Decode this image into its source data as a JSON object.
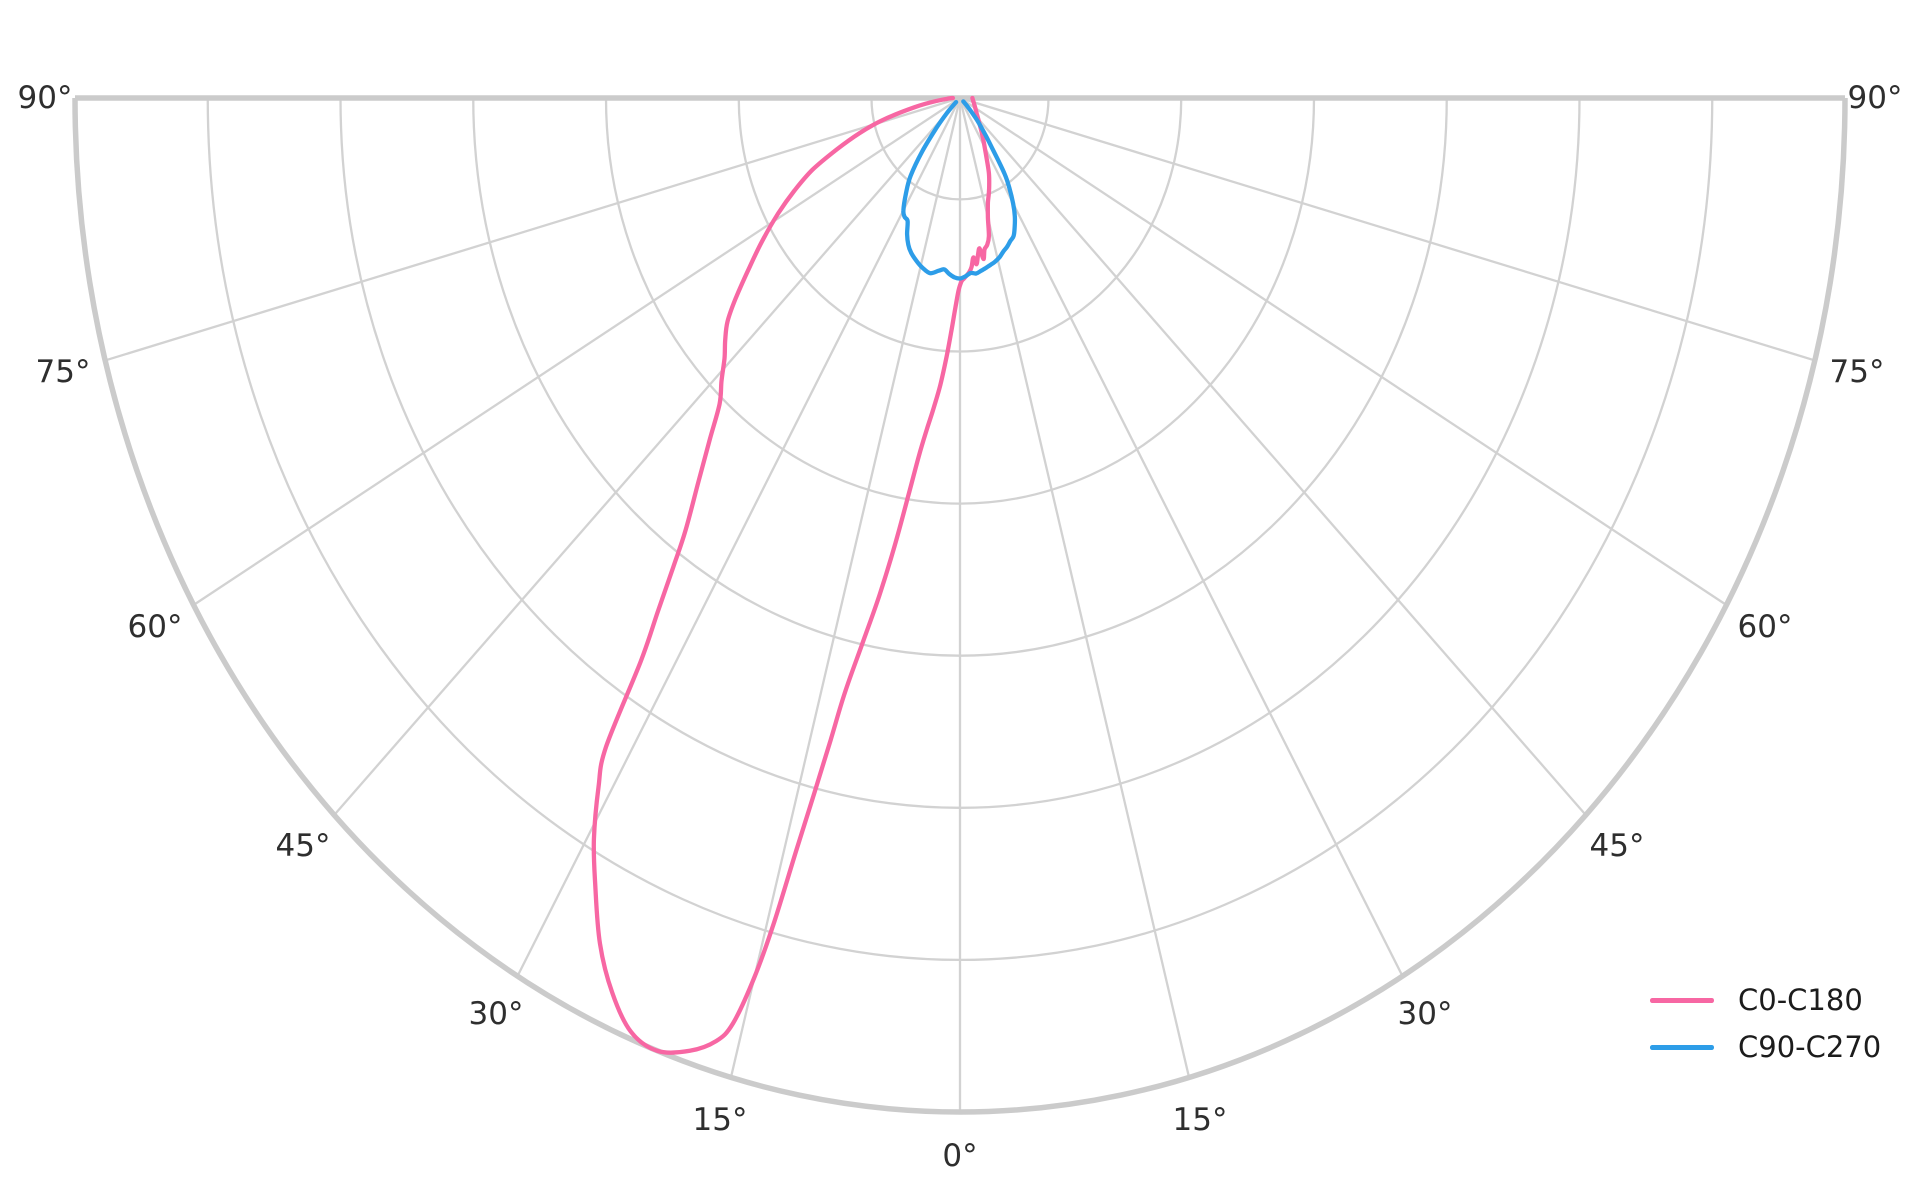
{
  "chart_data": {
    "type": "polar",
    "subtype": "photometric_intensity_distribution",
    "background": "#ffffff",
    "grid": {
      "grid_on": true,
      "thin_grid_color": "#d2d2d2",
      "outline_color": "#cbcbcb",
      "angle_step_deg": 15,
      "angle_range_deg": [
        -90,
        90
      ],
      "radial_ring_fractions": [
        0.1,
        0.25,
        0.4,
        0.55,
        0.7,
        0.85,
        1.0
      ],
      "radial_value_labels_visible": false
    },
    "text_color": "#2e2e2e",
    "angle_ticks": [
      {
        "angle": -90,
        "label": "90°"
      },
      {
        "angle": -75,
        "label": "75°"
      },
      {
        "angle": -60,
        "label": "60°"
      },
      {
        "angle": -45,
        "label": "45°"
      },
      {
        "angle": -30,
        "label": "30°"
      },
      {
        "angle": -15,
        "label": "15°"
      },
      {
        "angle": 0,
        "label": "0°"
      },
      {
        "angle": 15,
        "label": "15°"
      },
      {
        "angle": 30,
        "label": "30°"
      },
      {
        "angle": 45,
        "label": "45°"
      },
      {
        "angle": 60,
        "label": "60°"
      },
      {
        "angle": 75,
        "label": "75°"
      },
      {
        "angle": 90,
        "label": "90°"
      }
    ],
    "series": [
      {
        "name": "C0-C180",
        "color": "#f767a3",
        "points_theta_r": [
          [
            90,
            0.014
          ],
          [
            80,
            0.015
          ],
          [
            70,
            0.017
          ],
          [
            60,
            0.02
          ],
          [
            50,
            0.025
          ],
          [
            40,
            0.035
          ],
          [
            33,
            0.048
          ],
          [
            28,
            0.062
          ],
          [
            24,
            0.08
          ],
          [
            21,
            0.092
          ],
          [
            19,
            0.1
          ],
          [
            17,
            0.108
          ],
          [
            15,
            0.122
          ],
          [
            13.5,
            0.14
          ],
          [
            12,
            0.148
          ],
          [
            10.5,
            0.152
          ],
          [
            9.5,
            0.161
          ],
          [
            8.5,
            0.15
          ],
          [
            7.5,
            0.156
          ],
          [
            6.5,
            0.165
          ],
          [
            5.5,
            0.158
          ],
          [
            4.5,
            0.167
          ],
          [
            3.5,
            0.172
          ],
          [
            2.5,
            0.175
          ],
          [
            1.5,
            0.178
          ],
          [
            0.5,
            0.181
          ],
          [
            -0.5,
            0.19
          ],
          [
            -1.5,
            0.208
          ],
          [
            -2.5,
            0.232
          ],
          [
            -3.5,
            0.258
          ],
          [
            -4.5,
            0.284
          ],
          [
            -5.5,
            0.306
          ],
          [
            -6.5,
            0.328
          ],
          [
            -7.5,
            0.356
          ],
          [
            -8.5,
            0.398
          ],
          [
            -9.5,
            0.448
          ],
          [
            -10.5,
            0.498
          ],
          [
            -11.5,
            0.545
          ],
          [
            -12.5,
            0.6
          ],
          [
            -13,
            0.65
          ],
          [
            -13.5,
            0.705
          ],
          [
            -14,
            0.765
          ],
          [
            -14.5,
            0.842
          ],
          [
            -15,
            0.898
          ],
          [
            -15.7,
            0.948
          ],
          [
            -16.5,
            0.97
          ],
          [
            -18,
            0.988
          ],
          [
            -20,
            1.0
          ],
          [
            -22,
            0.993
          ],
          [
            -24,
            0.966
          ],
          [
            -26,
            0.928
          ],
          [
            -28,
            0.878
          ],
          [
            -29.5,
            0.84
          ],
          [
            -31,
            0.793
          ],
          [
            -32,
            0.755
          ],
          [
            -33,
            0.662
          ],
          [
            -34,
            0.61
          ],
          [
            -35,
            0.565
          ],
          [
            -36,
            0.528
          ],
          [
            -38,
            0.48
          ],
          [
            -40,
            0.44
          ],
          [
            -42,
            0.406
          ],
          [
            -44,
            0.388
          ],
          [
            -46,
            0.37
          ],
          [
            -48,
            0.357
          ],
          [
            -50,
            0.343
          ],
          [
            -52,
            0.322
          ],
          [
            -55,
            0.29
          ],
          [
            -58,
            0.262
          ],
          [
            -61,
            0.235
          ],
          [
            -64,
            0.208
          ],
          [
            -67,
            0.181
          ],
          [
            -70,
            0.148
          ],
          [
            -73,
            0.119
          ],
          [
            -76,
            0.09
          ],
          [
            -80,
            0.052
          ],
          [
            -84,
            0.026
          ],
          [
            -88,
            0.012
          ],
          [
            -90,
            0.008
          ]
        ]
      },
      {
        "name": "C90-C270",
        "color": "#2d9de8",
        "points_theta_r": [
          [
            -48,
            0.006
          ],
          [
            -45,
            0.02
          ],
          [
            -42,
            0.04
          ],
          [
            -39,
            0.068
          ],
          [
            -36,
            0.095
          ],
          [
            -33,
            0.112
          ],
          [
            -30,
            0.128
          ],
          [
            -28,
            0.133
          ],
          [
            -26,
            0.135
          ],
          [
            -24,
            0.147
          ],
          [
            -22,
            0.156
          ],
          [
            -20,
            0.162
          ],
          [
            -17,
            0.168
          ],
          [
            -14,
            0.173
          ],
          [
            -11,
            0.176
          ],
          [
            -8,
            0.172
          ],
          [
            -6,
            0.17
          ],
          [
            -4,
            0.174
          ],
          [
            -2,
            0.177
          ],
          [
            0,
            0.178
          ],
          [
            2,
            0.176
          ],
          [
            4,
            0.173
          ],
          [
            6,
            0.174
          ],
          [
            8,
            0.172
          ],
          [
            10,
            0.17
          ],
          [
            12,
            0.168
          ],
          [
            14,
            0.166
          ],
          [
            16,
            0.163
          ],
          [
            18,
            0.159
          ],
          [
            20,
            0.156
          ],
          [
            22,
            0.152
          ],
          [
            24,
            0.149
          ],
          [
            26,
            0.141
          ],
          [
            28,
            0.132
          ],
          [
            30,
            0.12
          ],
          [
            32,
            0.106
          ],
          [
            34,
            0.09
          ],
          [
            36,
            0.064
          ],
          [
            38,
            0.048
          ],
          [
            40,
            0.036
          ],
          [
            42,
            0.026
          ],
          [
            45,
            0.013
          ],
          [
            48,
            0.005
          ]
        ]
      }
    ],
    "legend": {
      "position": "lower right",
      "frame": false,
      "entries": [
        {
          "label": "C0-C180",
          "color": "#f767a3"
        },
        {
          "label": "C90-C270",
          "color": "#2d9de8"
        }
      ]
    }
  }
}
